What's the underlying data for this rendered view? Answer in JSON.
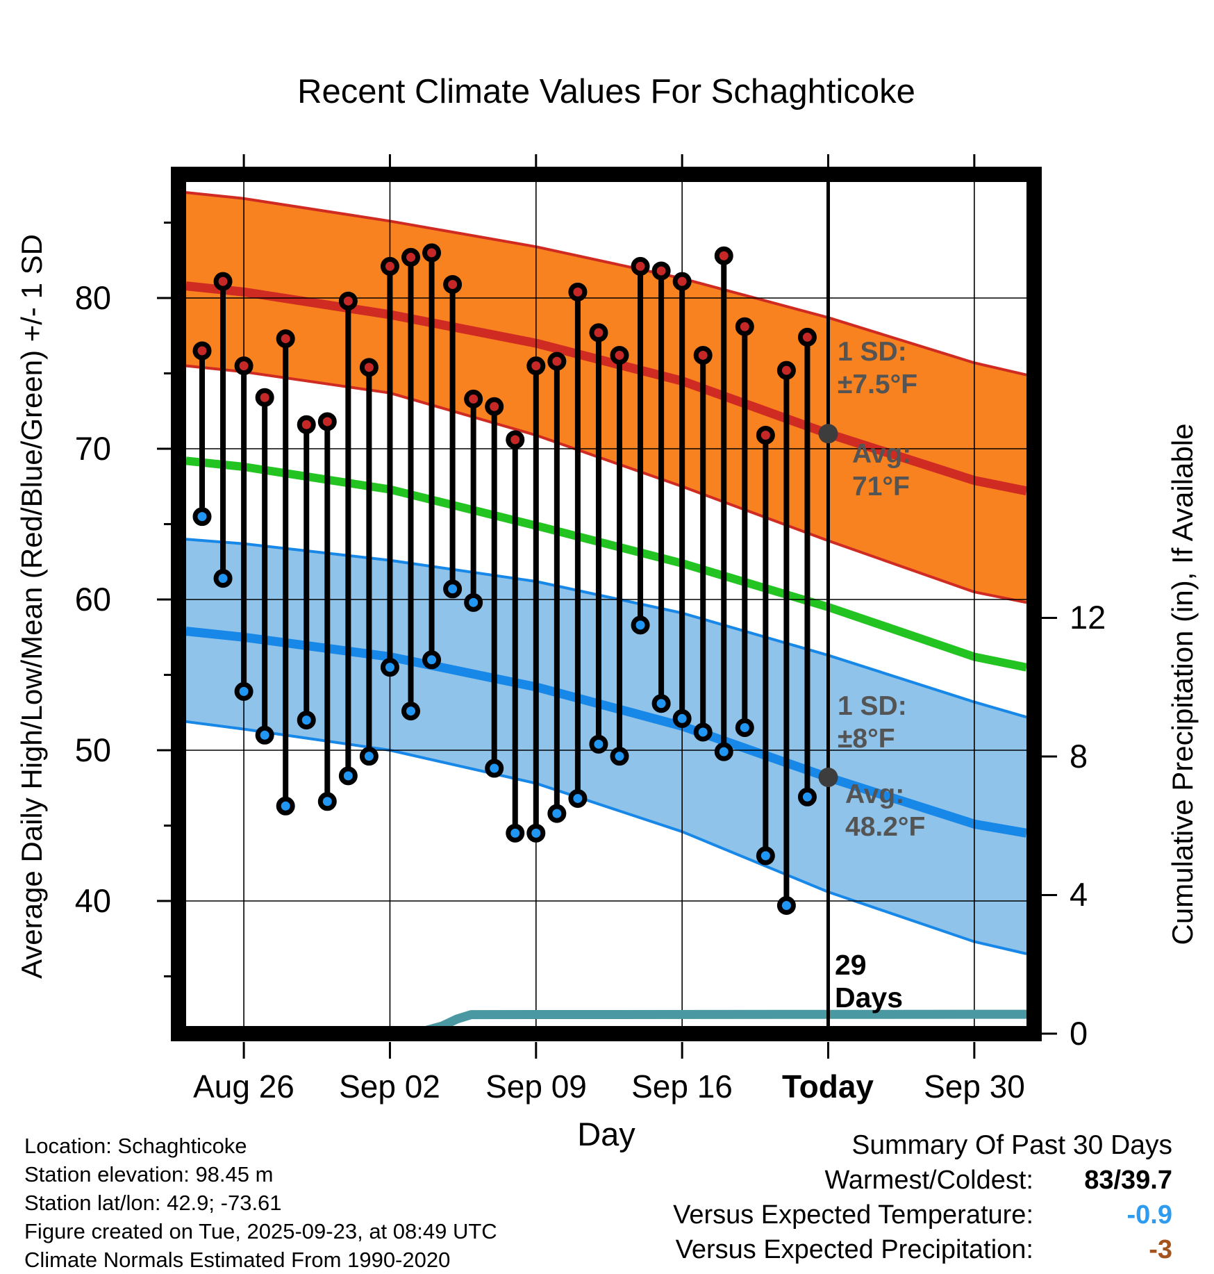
{
  "colors": {
    "band_high_fill": "#f8821f",
    "high_line": "#cf2b23",
    "high_dot": "#c62828",
    "band_low_fill": "#8fc3e9",
    "low_line": "#1787e8",
    "low_dot": "#2196f3",
    "mean_line": "#23c422",
    "precip_line": "#4a99a2",
    "grid_line": "#000000",
    "stem": "#000000",
    "marker_gray": "#3d3d3d",
    "annotation_gray": "#545454",
    "summary_temp_value": "#2d9bf0",
    "summary_precip_value": "#a3541e"
  },
  "annotations": {
    "high_sd": [
      "1 SD:",
      "±7.5°F"
    ],
    "high_avg": [
      "Avg:",
      "71°F"
    ],
    "low_sd": [
      "1 SD:",
      "±8°F"
    ],
    "low_avg": [
      "Avg:",
      "48.2°F"
    ],
    "days_count": [
      "29",
      "Days"
    ]
  },
  "footer": {
    "lines": [
      "Location: Schaghticoke",
      "Station elevation: 98.45 m",
      "Station lat/lon: 42.9; -73.61",
      "Figure created on Tue, 2025-09-23, at 08:49 UTC",
      "Climate Normals Estimated From 1990-2020"
    ]
  },
  "summary": {
    "title": "Summary Of Past 30 Days",
    "rows": [
      {
        "label": "Warmest/Coldest:",
        "value": "83/39.7",
        "color": "#000000"
      },
      {
        "label": "Versus Expected Temperature:",
        "value": "-0.9",
        "color": "#2d9bf0"
      },
      {
        "label": "Versus Expected Precipitation:",
        "value": "-3",
        "color": "#a3541e"
      }
    ]
  },
  "chart_data": {
    "type": "line",
    "title": "Recent Climate Values For Schaghticoke",
    "xlabel": "Day",
    "ylabel_left": "Average Daily High/Low/Mean (Red/Blue/Green) +/- 1 SD",
    "ylabel_right": "Cumulative Precipitation (in), If Available",
    "x_axis": {
      "ticks": [
        {
          "label": "Aug 26",
          "day": 2
        },
        {
          "label": "Sep 02",
          "day": 9
        },
        {
          "label": "Sep 09",
          "day": 16
        },
        {
          "label": "Sep 16",
          "day": 23
        },
        {
          "label": "Today",
          "day": 30
        },
        {
          "label": "Sep 30",
          "day": 37
        }
      ],
      "range_days": [
        -0.77,
        39.5
      ]
    },
    "y_left": {
      "ticks": [
        80,
        70,
        60,
        50,
        40
      ],
      "minor_ticks": [
        85,
        75,
        65,
        55,
        45,
        35
      ],
      "range": [
        31.5,
        87.7
      ]
    },
    "y_right": {
      "ticks": [
        12,
        8,
        4,
        0
      ],
      "range": [
        0,
        24.6
      ]
    },
    "daily": {
      "dates": [
        "Aug 24",
        "Aug 25",
        "Aug 26",
        "Aug 27",
        "Aug 28",
        "Aug 29",
        "Aug 30",
        "Aug 31",
        "Sep 01",
        "Sep 02",
        "Sep 03",
        "Sep 04",
        "Sep 05",
        "Sep 06",
        "Sep 07",
        "Sep 08",
        "Sep 09",
        "Sep 10",
        "Sep 11",
        "Sep 12",
        "Sep 13",
        "Sep 14",
        "Sep 15",
        "Sep 16",
        "Sep 17",
        "Sep 18",
        "Sep 19",
        "Sep 20",
        "Sep 21",
        "Sep 22"
      ],
      "highs": [
        76.5,
        81.1,
        75.5,
        73.4,
        77.3,
        71.6,
        71.8,
        79.8,
        75.4,
        82.1,
        82.7,
        83.0,
        80.9,
        73.3,
        72.8,
        70.6,
        75.5,
        75.8,
        80.4,
        77.7,
        76.2,
        82.1,
        81.8,
        81.1,
        76.2,
        82.8,
        78.1,
        70.9,
        75.2,
        77.4
      ],
      "lows": [
        65.5,
        61.4,
        53.9,
        51.0,
        46.3,
        52.0,
        46.6,
        48.3,
        49.6,
        55.5,
        52.6,
        56.0,
        60.7,
        59.8,
        48.8,
        44.5,
        44.5,
        45.8,
        46.8,
        50.4,
        49.6,
        58.3,
        53.1,
        52.1,
        51.2,
        49.9,
        51.5,
        43.0,
        39.7,
        46.9
      ]
    },
    "normals": {
      "day_anchors": [
        -0.77,
        2,
        9,
        16,
        23,
        30,
        37,
        39.5
      ],
      "high_upper": [
        87.0,
        86.6,
        85.1,
        83.4,
        81.3,
        78.7,
        75.7,
        74.9
      ],
      "high_avg": [
        80.8,
        80.4,
        78.9,
        77.0,
        74.5,
        71.0,
        67.9,
        67.2
      ],
      "high_lower": [
        75.5,
        75.1,
        73.7,
        70.9,
        67.5,
        63.9,
        60.5,
        59.8
      ],
      "mean": [
        69.2,
        68.8,
        67.3,
        64.9,
        62.4,
        59.5,
        56.2,
        55.5
      ],
      "low_upper": [
        64.0,
        63.7,
        62.6,
        61.2,
        59.1,
        56.3,
        53.2,
        52.2
      ],
      "low_avg": [
        57.9,
        57.5,
        56.2,
        54.2,
        51.6,
        48.2,
        45.1,
        44.5
      ],
      "low_lower": [
        51.9,
        51.4,
        50.0,
        47.8,
        44.6,
        40.6,
        37.3,
        36.5
      ]
    },
    "high_sd_today": 7.5,
    "low_sd_today": 8,
    "avg_high_today": 71,
    "avg_low_today": 48.2,
    "precip_cumulative": {
      "day_anchors": [
        -0.77,
        10.3,
        10.9,
        11.5,
        12.2,
        12.9,
        39.5
      ],
      "values": [
        0,
        0.02,
        0.12,
        0.22,
        0.42,
        0.55,
        0.56
      ]
    },
    "today_day": 30,
    "days_of_data": 29
  }
}
